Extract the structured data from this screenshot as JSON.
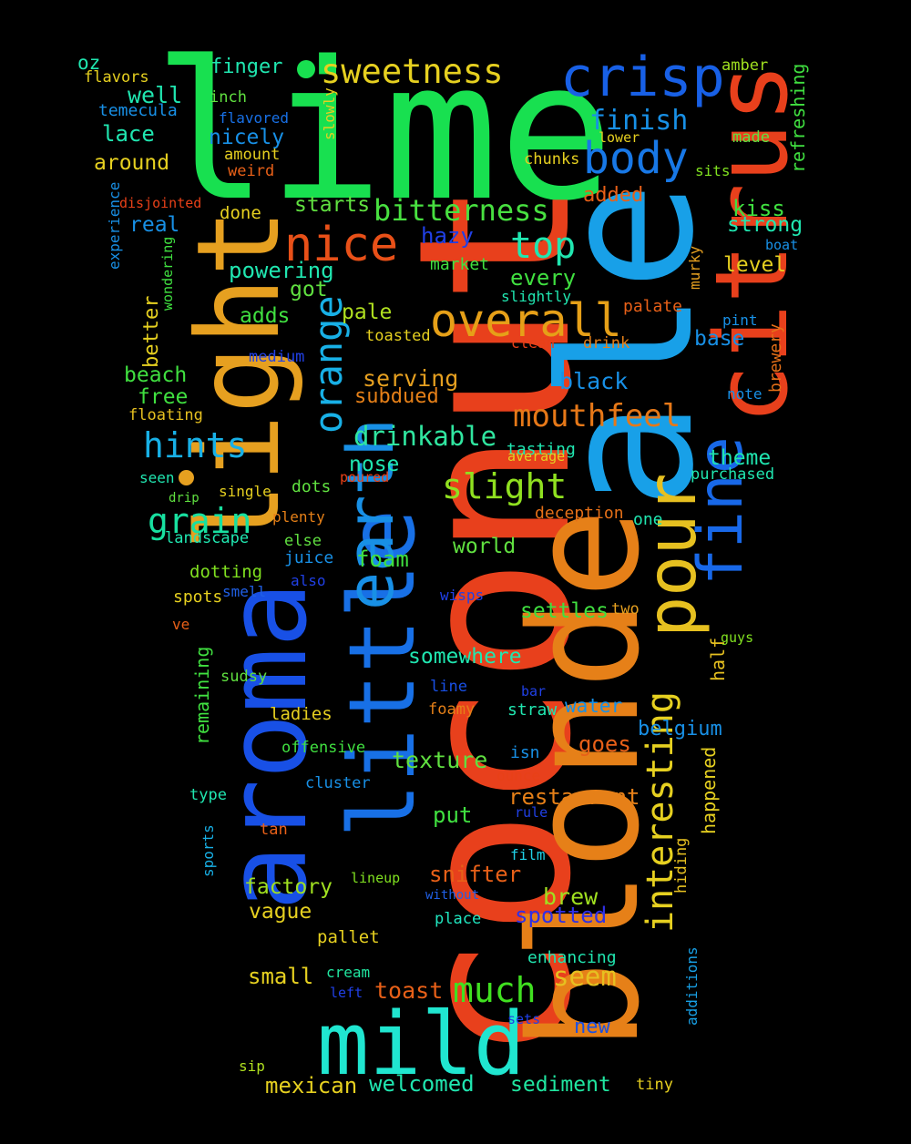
{
  "words": [
    {
      "text": "lime",
      "color": "#18e050"
    },
    {
      "text": "coconut",
      "color": "#e8401c"
    },
    {
      "text": "ale",
      "color": "#18a0e8"
    },
    {
      "text": "blonde",
      "color": "#e68018"
    },
    {
      "text": "light",
      "color": "#e6a020"
    },
    {
      "text": "aroma",
      "color": "#1850e6"
    },
    {
      "text": "citrus",
      "color": "#e8401c"
    },
    {
      "text": "little",
      "color": "#1870e6"
    },
    {
      "text": "mild",
      "color": "#20e6d0"
    },
    {
      "text": "earth",
      "color": "#1890e6"
    },
    {
      "text": "pour",
      "color": "#e6c020"
    },
    {
      "text": "fine",
      "color": "#1868e8"
    },
    {
      "text": "crisp",
      "color": "#1860e6"
    },
    {
      "text": "nice",
      "color": "#e85018"
    },
    {
      "text": "overall",
      "color": "#e6a018"
    },
    {
      "text": "orange",
      "color": "#18b0e6"
    },
    {
      "text": "interesting",
      "color": "#e6d020"
    },
    {
      "text": "body",
      "color": "#1878e6"
    },
    {
      "text": "sweetness",
      "color": "#e6d020"
    },
    {
      "text": "bitterness",
      "color": "#48e040"
    },
    {
      "text": "mouthfeel",
      "color": "#e67818"
    },
    {
      "text": "slight",
      "color": "#90e020"
    },
    {
      "text": "hints",
      "color": "#18b0e6"
    },
    {
      "text": "grain",
      "color": "#18e0a0"
    },
    {
      "text": "top",
      "color": "#20e6b0"
    },
    {
      "text": "finish",
      "color": "#1890e6"
    },
    {
      "text": "much",
      "color": "#40e020"
    },
    {
      "text": "drinkable",
      "color": "#30e6a0"
    },
    {
      "text": "refreshing",
      "color": "#40e040"
    },
    {
      "text": "welcomed",
      "color": "#20e6b0"
    },
    {
      "text": "mexican",
      "color": "#e6d020"
    },
    {
      "text": "sediment",
      "color": "#20e6a0"
    },
    {
      "text": "toast",
      "color": "#e86018"
    },
    {
      "text": "seem",
      "color": "#e6c020"
    },
    {
      "text": "new",
      "color": "#1850e6"
    },
    {
      "text": "small",
      "color": "#e6d020"
    },
    {
      "text": "cream",
      "color": "#20e6a0"
    },
    {
      "text": "left",
      "color": "#2040e6"
    },
    {
      "text": "sets",
      "color": "#2040e6"
    },
    {
      "text": "enhancing",
      "color": "#20e6b0"
    },
    {
      "text": "tiny",
      "color": "#e6d020"
    },
    {
      "text": "sip",
      "color": "#b0e020"
    },
    {
      "text": "additions",
      "color": "#18a0e6"
    },
    {
      "text": "pallet",
      "color": "#e6d020"
    },
    {
      "text": "place",
      "color": "#20e6c0"
    },
    {
      "text": "without",
      "color": "#2060e6"
    },
    {
      "text": "spotted",
      "color": "#3030e6"
    },
    {
      "text": "brew",
      "color": "#a0e020"
    },
    {
      "text": "vague",
      "color": "#e6d020"
    },
    {
      "text": "factory",
      "color": "#a0e020"
    },
    {
      "text": "lineup",
      "color": "#80e020"
    },
    {
      "text": "snifter",
      "color": "#e86018"
    },
    {
      "text": "film",
      "color": "#20d0e6"
    },
    {
      "text": "hiding",
      "color": "#e6c020"
    },
    {
      "text": "put",
      "color": "#40e040"
    },
    {
      "text": "rule",
      "color": "#2040e6"
    },
    {
      "text": "sports",
      "color": "#18b0e6"
    },
    {
      "text": "tan",
      "color": "#e86018"
    },
    {
      "text": "restaurant",
      "color": "#e68018"
    },
    {
      "text": "ounce",
      "color": "#e84018"
    },
    {
      "text": "happened",
      "color": "#e6d020"
    },
    {
      "text": "type",
      "color": "#20e6b0"
    },
    {
      "text": "cluster",
      "color": "#1890e6"
    },
    {
      "text": "texture",
      "color": "#60e040"
    },
    {
      "text": "isn",
      "color": "#1890e6"
    },
    {
      "text": "goes",
      "color": "#e86018"
    },
    {
      "text": "belgium",
      "color": "#1890e6"
    },
    {
      "text": "offensive",
      "color": "#40e040"
    },
    {
      "text": "ladies",
      "color": "#e6d020"
    },
    {
      "text": "foamy",
      "color": "#e68018"
    },
    {
      "text": "straw",
      "color": "#20e6b0"
    },
    {
      "text": "water",
      "color": "#1890e6"
    },
    {
      "text": "remaining",
      "color": "#40e040"
    },
    {
      "text": "sudsy",
      "color": "#60e040"
    },
    {
      "text": "line",
      "color": "#1850e6"
    },
    {
      "text": "bar",
      "color": "#2040e6"
    },
    {
      "text": "half",
      "color": "#e6c020"
    },
    {
      "text": "somewhere",
      "color": "#20e6b0"
    },
    {
      "text": "guys",
      "color": "#80e020"
    },
    {
      "text": "ve",
      "color": "#e86018"
    },
    {
      "text": "smell",
      "color": "#2060e6"
    },
    {
      "text": "wisps",
      "color": "#2040e6"
    },
    {
      "text": "settles",
      "color": "#40e040"
    },
    {
      "text": "two",
      "color": "#e6a020"
    },
    {
      "text": "spots",
      "color": "#e6d020"
    },
    {
      "text": "also",
      "color": "#2040e6"
    },
    {
      "text": "dotting",
      "color": "#80e020"
    },
    {
      "text": "juice",
      "color": "#1890e6"
    },
    {
      "text": "foam",
      "color": "#40e040"
    },
    {
      "text": "world",
      "color": "#60e040"
    },
    {
      "text": "landscape",
      "color": "#20e6b0"
    },
    {
      "text": "else",
      "color": "#60e040"
    },
    {
      "text": "plenty",
      "color": "#e68018"
    },
    {
      "text": "deception",
      "color": "#e67018"
    },
    {
      "text": "one",
      "color": "#20e6b0"
    },
    {
      "text": "drip",
      "color": "#60e040"
    },
    {
      "text": "single",
      "color": "#e6d020"
    },
    {
      "text": "dots",
      "color": "#60e040"
    },
    {
      "text": "poured",
      "color": "#e84018"
    },
    {
      "text": "seen",
      "color": "#20e6b0"
    },
    {
      "text": "nose",
      "color": "#20e6b0"
    },
    {
      "text": "tasting",
      "color": "#20e6b0"
    },
    {
      "text": "average",
      "color": "#e6d020"
    },
    {
      "text": "purchased",
      "color": "#20e6b0"
    },
    {
      "text": "theme",
      "color": "#20e6b0"
    },
    {
      "text": "black",
      "color": "#1890e6"
    },
    {
      "text": "subdued",
      "color": "#e68018"
    },
    {
      "text": "serving",
      "color": "#e6a020"
    },
    {
      "text": "floating",
      "color": "#e6c020"
    },
    {
      "text": "free",
      "color": "#40e040"
    },
    {
      "text": "beach",
      "color": "#40e040"
    },
    {
      "text": "note",
      "color": "#1890e6"
    },
    {
      "text": "brewery",
      "color": "#e67018"
    },
    {
      "text": "base",
      "color": "#1890e6"
    },
    {
      "text": "pint",
      "color": "#1890e6"
    },
    {
      "text": "drink",
      "color": "#e68018"
    },
    {
      "text": "clean",
      "color": "#e84018"
    },
    {
      "text": "toasted",
      "color": "#e6d020"
    },
    {
      "text": "medium",
      "color": "#2040e6"
    },
    {
      "text": "better",
      "color": "#e6d020"
    },
    {
      "text": "adds",
      "color": "#40e040"
    },
    {
      "text": "pale",
      "color": "#b0e020"
    },
    {
      "text": "palate",
      "color": "#e86018"
    },
    {
      "text": "murky",
      "color": "#e6a020"
    },
    {
      "text": "level",
      "color": "#e6d020"
    },
    {
      "text": "slightly",
      "color": "#20e6b0"
    },
    {
      "text": "every",
      "color": "#40e040"
    },
    {
      "text": "got",
      "color": "#60e040"
    },
    {
      "text": "market",
      "color": "#40e040"
    },
    {
      "text": "powering",
      "color": "#20e6b0"
    },
    {
      "text": "real",
      "color": "#1890e6"
    },
    {
      "text": "wondering",
      "color": "#40e040"
    },
    {
      "text": "experience",
      "color": "#1890e6"
    },
    {
      "text": "hazy",
      "color": "#2040e6"
    },
    {
      "text": "boat",
      "color": "#1890e6"
    },
    {
      "text": "strong",
      "color": "#20e6b0"
    },
    {
      "text": "kiss",
      "color": "#40e040"
    },
    {
      "text": "starts",
      "color": "#60e040"
    },
    {
      "text": "done",
      "color": "#e6d020"
    },
    {
      "text": "disjointed",
      "color": "#e84018"
    },
    {
      "text": "added",
      "color": "#e86018"
    },
    {
      "text": "sits",
      "color": "#80e020"
    },
    {
      "text": "chunks",
      "color": "#e6d020"
    },
    {
      "text": "made",
      "color": "#60e040"
    },
    {
      "text": "lower",
      "color": "#e6d020"
    },
    {
      "text": "weird",
      "color": "#e86018"
    },
    {
      "text": "amount",
      "color": "#e6d020"
    },
    {
      "text": "around",
      "color": "#e6d020"
    },
    {
      "text": "nicely",
      "color": "#1890e6"
    },
    {
      "text": "flavored",
      "color": "#1870e6"
    },
    {
      "text": "slowly",
      "color": "#e6d020"
    },
    {
      "text": "temecula",
      "color": "#1890e6"
    },
    {
      "text": "lace",
      "color": "#20e6b0"
    },
    {
      "text": "inch",
      "color": "#60e040"
    },
    {
      "text": "well",
      "color": "#20e6b0"
    },
    {
      "text": "flavors",
      "color": "#e6d020"
    },
    {
      "text": "oz",
      "color": "#20e6b0"
    },
    {
      "text": "finger",
      "color": "#20e6b0"
    },
    {
      "text": "amber",
      "color": "#a0e020"
    }
  ],
  "colors": {
    "background": "#000000",
    "dot_green": "#18e050",
    "dot_orange": "#e6a020"
  }
}
